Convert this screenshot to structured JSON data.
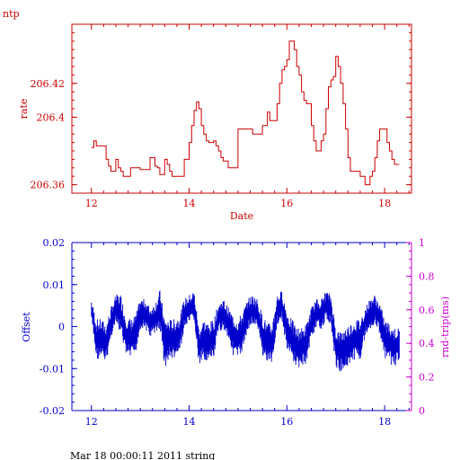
{
  "page_title": "ntp",
  "footer_text": "Mar 18 00:00:11 2011 string",
  "colors": {
    "top": "#cc0000",
    "offset": "#0000cc",
    "rtt": "#cc00cc"
  },
  "chart_data": [
    {
      "type": "line",
      "title": "",
      "xlabel": "Date",
      "ylabel": "rate",
      "xlim": [
        11.6,
        18.55
      ],
      "ylim": [
        206.355,
        206.455
      ],
      "x_ticks": [
        {
          "value": 12,
          "label": "12"
        },
        {
          "value": 14,
          "label": "14"
        },
        {
          "value": 16,
          "label": "16"
        },
        {
          "value": 18,
          "label": "18"
        }
      ],
      "y_ticks": [
        {
          "value": 206.36,
          "label": "206.36"
        },
        {
          "value": 206.4,
          "label": "206.4"
        },
        {
          "value": 206.42,
          "label": "206.42"
        }
      ],
      "series": [
        {
          "x": [
            12.0,
            12.05,
            12.1,
            12.15,
            12.2,
            12.3,
            12.35,
            12.4,
            12.45,
            12.5,
            12.55,
            12.6,
            12.65,
            12.7,
            12.8,
            12.9,
            13.0,
            13.1,
            13.2,
            13.3,
            13.35,
            13.4,
            13.5,
            13.55,
            13.6,
            13.65,
            13.7,
            13.8,
            13.9,
            14.0,
            14.05,
            14.1,
            14.15,
            14.2,
            14.25,
            14.3,
            14.35,
            14.4,
            14.5,
            14.55,
            14.6,
            14.65,
            14.7,
            14.8,
            14.9,
            15.0,
            15.1,
            15.2,
            15.3,
            15.4,
            15.5,
            15.6,
            15.65,
            15.7,
            15.8,
            15.85,
            15.9,
            15.95,
            16.0,
            16.05,
            16.1,
            16.15,
            16.2,
            16.25,
            16.3,
            16.35,
            16.4,
            16.5,
            16.55,
            16.6,
            16.65,
            16.7,
            16.75,
            16.8,
            16.85,
            16.9,
            16.95,
            17.0,
            17.05,
            17.1,
            17.15,
            17.2,
            17.25,
            17.3,
            17.35,
            17.4,
            17.5,
            17.6,
            17.65,
            17.7,
            17.75,
            17.8,
            17.85,
            17.9,
            17.95,
            18.0,
            18.05,
            18.1,
            18.15,
            18.2,
            18.25,
            18.3
          ],
          "values": [
            206.382,
            206.386,
            206.383,
            206.383,
            206.383,
            206.375,
            206.371,
            206.368,
            206.368,
            206.375,
            206.37,
            206.368,
            206.365,
            206.365,
            206.37,
            206.37,
            206.369,
            206.369,
            206.376,
            206.371,
            206.37,
            206.366,
            206.375,
            206.372,
            206.368,
            206.365,
            206.365,
            206.365,
            206.375,
            206.385,
            206.395,
            206.404,
            206.409,
            206.405,
            206.395,
            206.39,
            206.386,
            206.385,
            206.386,
            206.383,
            206.38,
            206.376,
            206.374,
            206.37,
            206.37,
            206.393,
            206.393,
            206.393,
            206.39,
            206.39,
            206.395,
            206.403,
            206.398,
            206.398,
            206.408,
            206.42,
            206.428,
            206.43,
            206.434,
            206.445,
            206.445,
            206.44,
            206.43,
            206.425,
            206.415,
            206.41,
            206.408,
            206.395,
            206.386,
            206.38,
            206.38,
            206.386,
            206.39,
            206.405,
            206.418,
            206.422,
            206.424,
            206.436,
            206.43,
            206.42,
            206.408,
            206.393,
            206.376,
            206.368,
            206.368,
            206.368,
            206.365,
            206.36,
            206.36,
            206.365,
            206.368,
            206.376,
            206.386,
            206.393,
            206.393,
            206.393,
            206.385,
            206.38,
            206.375,
            206.372,
            206.372,
            206.372
          ]
        }
      ]
    },
    {
      "type": "line",
      "title": "",
      "xlabel": "",
      "ylabel": "Offset",
      "y2label": "rnd-trip(ms)",
      "xlim": [
        11.6,
        18.55
      ],
      "ylim": [
        -0.02,
        0.02
      ],
      "y2lim": [
        0,
        1
      ],
      "x_ticks": [
        {
          "value": 12,
          "label": "12"
        },
        {
          "value": 14,
          "label": "14"
        },
        {
          "value": 16,
          "label": "16"
        },
        {
          "value": 18,
          "label": "18"
        }
      ],
      "y_ticks": [
        {
          "value": -0.02,
          "label": "-0.02"
        },
        {
          "value": -0.01,
          "label": "-0.01"
        },
        {
          "value": 0,
          "label": "0"
        },
        {
          "value": 0.01,
          "label": "0.01"
        },
        {
          "value": 0.02,
          "label": "0.02"
        }
      ],
      "y2_ticks": [
        {
          "value": 0,
          "label": "0"
        },
        {
          "value": 0.2,
          "label": "0.2"
        },
        {
          "value": 0.4,
          "label": "0.4"
        },
        {
          "value": 0.6,
          "label": "0.6"
        },
        {
          "value": 0.8,
          "label": "0.8"
        },
        {
          "value": 1,
          "label": "1"
        }
      ],
      "series": [
        {
          "x": [
            12.0,
            12.1,
            12.2,
            12.3,
            12.4,
            12.5,
            12.6,
            12.7,
            12.8,
            12.9,
            13.0,
            13.1,
            13.2,
            13.3,
            13.4,
            13.5,
            13.6,
            13.7,
            13.8,
            13.9,
            14.0,
            14.1,
            14.2,
            14.3,
            14.4,
            14.5,
            14.6,
            14.7,
            14.8,
            14.9,
            15.0,
            15.1,
            15.2,
            15.3,
            15.4,
            15.5,
            15.6,
            15.7,
            15.8,
            15.9,
            16.0,
            16.1,
            16.2,
            16.3,
            16.4,
            16.5,
            16.6,
            16.7,
            16.8,
            16.9,
            17.0,
            17.1,
            17.2,
            17.3,
            17.4,
            17.5,
            17.6,
            17.7,
            17.8,
            17.9,
            18.0,
            18.1,
            18.2,
            18.3
          ],
          "values": [
            0.004,
            -0.003,
            -0.003,
            -0.004,
            0.001,
            0.004,
            0.003,
            -0.002,
            -0.003,
            -0.002,
            0.003,
            0.003,
            0.001,
            0.002,
            0.004,
            -0.004,
            -0.003,
            -0.003,
            -0.002,
            0.003,
            0.004,
            0.005,
            -0.005,
            -0.003,
            -0.004,
            -0.003,
            0.002,
            0.003,
            0.001,
            -0.002,
            -0.003,
            -0.001,
            0.003,
            0.004,
            0.003,
            -0.002,
            -0.004,
            -0.004,
            0.004,
            0.005,
            -0.001,
            -0.003,
            -0.005,
            -0.005,
            -0.004,
            0.001,
            0.003,
            0.003,
            0.005,
            0.004,
            -0.005,
            -0.006,
            -0.005,
            -0.004,
            -0.003,
            -0.003,
            0.001,
            0.003,
            0.004,
            0.002,
            -0.003,
            -0.004,
            -0.005,
            -0.004
          ],
          "spread": [
            0.002,
            0.004,
            0.004,
            0.004,
            0.003,
            0.003,
            0.004,
            0.004,
            0.004,
            0.004,
            0.003,
            0.003,
            0.003,
            0.003,
            0.004,
            0.005,
            0.004,
            0.004,
            0.004,
            0.003,
            0.003,
            0.003,
            0.004,
            0.004,
            0.004,
            0.004,
            0.003,
            0.003,
            0.003,
            0.004,
            0.004,
            0.004,
            0.003,
            0.003,
            0.003,
            0.004,
            0.004,
            0.004,
            0.003,
            0.003,
            0.004,
            0.004,
            0.004,
            0.004,
            0.004,
            0.003,
            0.003,
            0.003,
            0.003,
            0.003,
            0.004,
            0.004,
            0.004,
            0.004,
            0.004,
            0.004,
            0.003,
            0.003,
            0.003,
            0.003,
            0.004,
            0.004,
            0.004,
            0.003
          ]
        }
      ]
    }
  ]
}
